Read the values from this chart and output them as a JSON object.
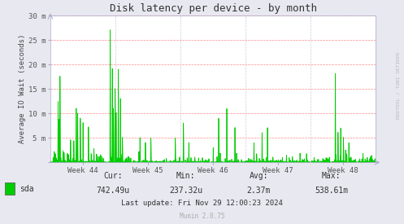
{
  "title": "Disk latency per device - by month",
  "ylabel": "Average IO Wait (seconds)",
  "background_color": "#e8e8f0",
  "plot_bg_color": "#ffffff",
  "line_color": "#00cc00",
  "fill_color": "#00cc00",
  "grid_color_h": "#ff8888",
  "grid_color_v": "#ccccdd",
  "ylim": [
    0,
    30
  ],
  "yticks": [
    0,
    5,
    10,
    15,
    20,
    25,
    30
  ],
  "ytick_labels": [
    "",
    "5 m",
    "10 m",
    "15 m",
    "20 m",
    "25 m",
    "30 m"
  ],
  "week_labels": [
    "Week 44",
    "Week 45",
    "Week 46",
    "Week 47",
    "Week 48"
  ],
  "legend_label": "sda",
  "cur_label": "Cur:",
  "min_label": "Min:",
  "avg_label": "Avg:",
  "max_label": "Max:",
  "cur": "742.49u",
  "min": "237.32u",
  "avg": "2.37m",
  "max": "538.61m",
  "last_update": "Last update: Fri Nov 29 12:00:23 2024",
  "munin_version": "Munin 2.0.75",
  "right_label": "RRDTOOL / TOBI OETIKER",
  "n_points": 1200,
  "seed": 42
}
